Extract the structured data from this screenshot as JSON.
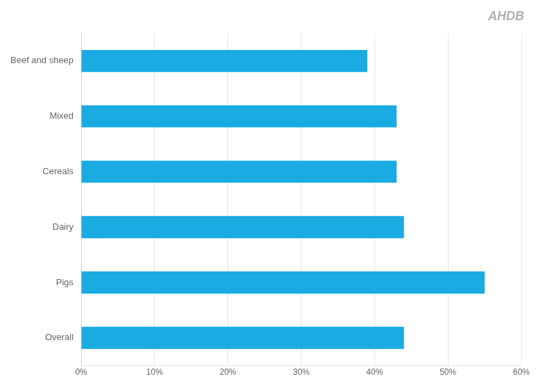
{
  "chart_data": {
    "type": "bar",
    "orientation": "horizontal",
    "categories": [
      "Beef and sheep",
      "Mixed",
      "Cereals",
      "Dairy",
      "Pigs",
      "Overall"
    ],
    "values": [
      39,
      43,
      43,
      44,
      55,
      44
    ],
    "color": "#1aabe2",
    "xlim": [
      0,
      60
    ],
    "xticks": [
      {
        "value": 0,
        "label": "0%"
      },
      {
        "value": 10,
        "label": "10%"
      },
      {
        "value": 20,
        "label": "20%"
      },
      {
        "value": 30,
        "label": "30%"
      },
      {
        "value": 40,
        "label": "40%"
      },
      {
        "value": 50,
        "label": "50%"
      },
      {
        "value": 60,
        "label": "60%"
      }
    ],
    "grid": true,
    "annotations": [
      "AHDB"
    ]
  }
}
